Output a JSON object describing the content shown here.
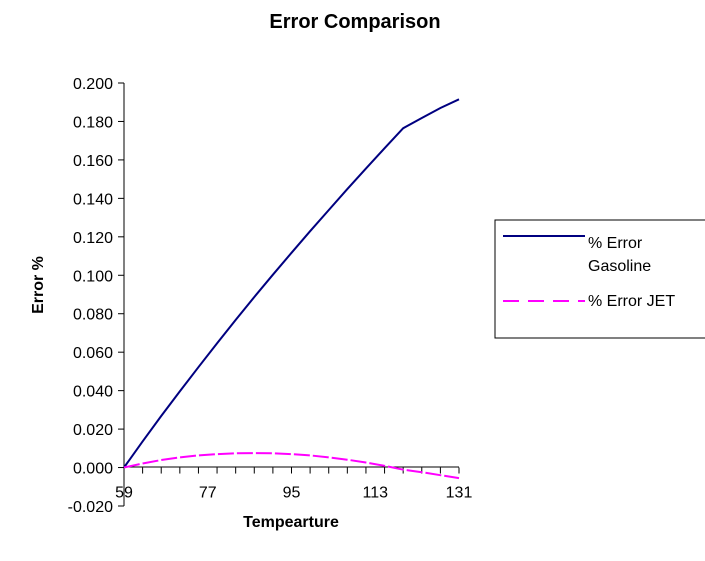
{
  "chart_data": {
    "type": "line",
    "title": "Error Comparison",
    "xlabel": "Tempearture",
    "ylabel": "Error %",
    "x_tick_labels": [
      "59",
      "77",
      "95",
      "113",
      "131"
    ],
    "y_tick_labels": [
      "-0.020",
      "0.000",
      "0.020",
      "0.040",
      "0.060",
      "0.080",
      "0.100",
      "0.120",
      "0.140",
      "0.160",
      "0.180",
      "0.200"
    ],
    "x": [
      59,
      63,
      67,
      71,
      75,
      79,
      83,
      87,
      91,
      95,
      99,
      103,
      107,
      111,
      115,
      119,
      123,
      127,
      131
    ],
    "xlim": [
      59,
      131
    ],
    "ylim": [
      -0.02,
      0.2
    ],
    "grid": false,
    "legend_position": "right",
    "series": [
      {
        "name": "% Error Gasoline",
        "legend_lines": [
          "% Error",
          "Gasoline"
        ],
        "color": "#000080",
        "dash": "solid",
        "values": [
          0.0,
          0.0136,
          0.0268,
          0.0396,
          0.0522,
          0.0646,
          0.0768,
          0.0887,
          0.1003,
          0.1117,
          0.1229,
          0.1339,
          0.1448,
          0.1555,
          0.1661,
          0.1765,
          0.1818,
          0.187,
          0.1915
        ]
      },
      {
        "name": "% Error JET",
        "legend_lines": [
          "% Error JET"
        ],
        "color": "#FF00FF",
        "dash": "dashed",
        "values": [
          0.0,
          0.0021,
          0.0039,
          0.0053,
          0.0063,
          0.007,
          0.0074,
          0.0075,
          0.0074,
          0.007,
          0.0063,
          0.0053,
          0.0041,
          0.0026,
          0.0009,
          -0.0011,
          -0.0024,
          -0.004,
          -0.0055
        ]
      }
    ]
  }
}
